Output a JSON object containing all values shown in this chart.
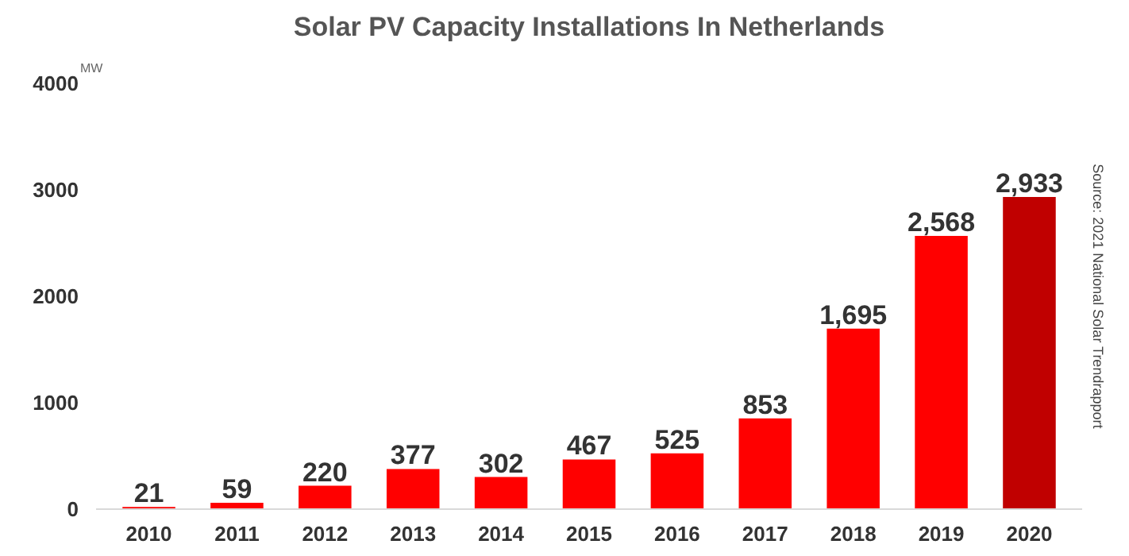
{
  "chart_data": {
    "type": "bar",
    "title": "Solar PV Capacity Installations In Netherlands",
    "ylabel": "MW",
    "categories": [
      "2010",
      "2011",
      "2012",
      "2013",
      "2014",
      "2015",
      "2016",
      "2017",
      "2018",
      "2019",
      "2020"
    ],
    "values": [
      21,
      59,
      220,
      377,
      302,
      467,
      525,
      853,
      1695,
      2568,
      2933
    ],
    "colors": [
      "#ff0000",
      "#ff0000",
      "#ff0000",
      "#ff0000",
      "#ff0000",
      "#ff0000",
      "#ff0000",
      "#ff0000",
      "#ff0000",
      "#ff0000",
      "#c00000"
    ],
    "value_labels": [
      "21",
      "59",
      "220",
      "377",
      "302",
      "467",
      "525",
      "853",
      "1,695",
      "2,568",
      "2,933"
    ],
    "ylim": [
      0,
      4000
    ],
    "yticks": [
      0,
      1000,
      2000,
      3000,
      4000
    ],
    "grid": false,
    "annotations": [
      "Source: 2021 National Solar Trendrapport"
    ]
  }
}
